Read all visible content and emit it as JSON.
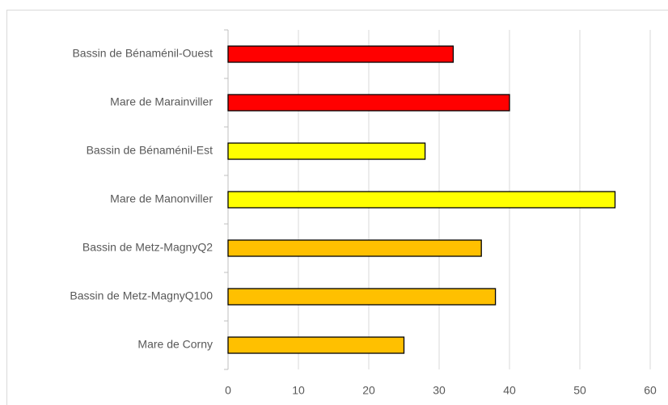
{
  "chart_data": {
    "type": "bar",
    "orientation": "horizontal",
    "categories": [
      "Bassin de Bénaménil-Ouest",
      "Mare de Marainviller",
      "Bassin de Bénaménil-Est",
      "Mare de Manonviller",
      "Bassin de Metz-MagnyQ2",
      "Bassin de Metz-MagnyQ100",
      "Mare de Corny"
    ],
    "values": [
      32,
      40,
      28,
      55,
      36,
      38,
      25
    ],
    "colors": [
      "#ff0000",
      "#ff0000",
      "#ffff00",
      "#ffff00",
      "#ffc000",
      "#ffc000",
      "#ffc000"
    ],
    "xlim": [
      0,
      60
    ],
    "xticks": [
      0,
      10,
      20,
      30,
      40,
      50,
      60
    ],
    "grid": true
  }
}
